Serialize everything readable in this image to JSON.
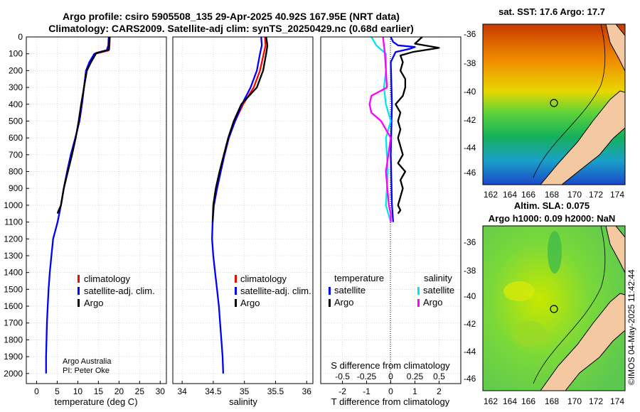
{
  "titles": {
    "line1": "Argo profile: csiro 5905508_135 29-Apr-2025 40.92S 167.95E (NRT data)",
    "line2": "Climatology: CARS2009. Satellite-adj clim: synTS_20250429.nc (0.68d earlier)"
  },
  "maps": {
    "sst_title": "sat. SST: 17.6 Argo: 17.7",
    "sla_title1": "Altim. SLA: 0.075",
    "sla_title2": "Argo h1000: 0.09 h2000: NaN",
    "lat_ticks": [
      "-36",
      "-38",
      "-40",
      "-42",
      "-44",
      "-46"
    ],
    "lon_ticks": [
      "162",
      "164",
      "166",
      "168",
      "170",
      "172",
      "174"
    ],
    "stamp": "©IMOS 04-May-2025 11:42:44"
  },
  "colors": {
    "climatology": "#ff0000",
    "satellite_adj": "#0000ff",
    "argo": "#000000",
    "sat_temp_diff": "#0000ff",
    "sat_sal_diff": "#00e5ee",
    "argo_sal_diff": "#ff00ff",
    "land": "#f4c8a0"
  },
  "legends": {
    "temp": [
      "climatology",
      "satellite-adj. clim.",
      "Argo"
    ],
    "sal": [
      "climatology",
      "satellite-adj. clim.",
      "Argo"
    ],
    "diff_temp_header": "temperature",
    "diff_sal_header": "salinity",
    "diff_temp_items": [
      "satellite",
      "Argo"
    ],
    "diff_sal_items": [
      "satellite",
      "Argo"
    ]
  },
  "credits": {
    "line1": "Argo Australia",
    "line2": "PI: Peter Oke"
  },
  "chart_data": [
    {
      "type": "line",
      "title": "",
      "xlabel": "temperature (deg C)",
      "ylabel": "",
      "xlim": [
        -2.5,
        31.5
      ],
      "ylim": [
        0,
        2060
      ],
      "x_ticks": [
        0,
        5,
        10,
        15,
        20,
        25,
        30
      ],
      "y_ticks": [
        0,
        100,
        200,
        300,
        400,
        500,
        600,
        700,
        800,
        900,
        1000,
        1100,
        1200,
        1300,
        1400,
        1500,
        1600,
        1700,
        1800,
        1900,
        2000
      ],
      "series": [
        {
          "name": "climatology",
          "x": [
            17.8,
            17.7,
            17.5,
            14.2,
            12.8,
            12.0,
            11.5,
            11.0,
            10.4,
            9.4,
            8.3,
            7.4,
            6.6,
            5.9,
            5.2
          ],
          "y": [
            0,
            50,
            80,
            100,
            150,
            200,
            300,
            400,
            500,
            600,
            700,
            800,
            900,
            1000,
            1040
          ]
        },
        {
          "name": "satellite-adj. clim.",
          "x": [
            17.5,
            17.4,
            17.0,
            14.0,
            12.8,
            12.0,
            11.5,
            11.0,
            10.4,
            9.4,
            8.3,
            7.4,
            6.6,
            5.9,
            5.1,
            4.0,
            3.6,
            3.2,
            2.9,
            2.7,
            2.5,
            2.4,
            2.3,
            2.3
          ],
          "y": [
            0,
            50,
            80,
            100,
            150,
            200,
            300,
            400,
            500,
            600,
            700,
            800,
            900,
            1000,
            1100,
            1200,
            1300,
            1400,
            1500,
            1600,
            1700,
            1800,
            1900,
            2000
          ]
        },
        {
          "name": "Argo",
          "x": [
            17.7,
            17.6,
            17.6,
            14.5,
            13.2,
            12.2,
            11.5,
            10.8,
            10.2,
            9.5,
            8.6,
            7.6,
            6.6,
            5.9,
            5.2,
            5.1
          ],
          "y": [
            0,
            40,
            75,
            95,
            150,
            200,
            300,
            400,
            500,
            600,
            700,
            800,
            900,
            1000,
            1040,
            1050
          ]
        }
      ]
    },
    {
      "type": "line",
      "title": "",
      "xlabel": "salinity",
      "ylabel": "",
      "xlim": [
        33.85,
        36.1
      ],
      "ylim": [
        0,
        2060
      ],
      "x_ticks": [
        34,
        34.5,
        35,
        35.5,
        36
      ],
      "x_tick_labels": [
        "34",
        "34.5",
        "35",
        "35.5",
        "36"
      ],
      "series": [
        {
          "name": "climatology",
          "x": [
            35.33,
            35.34,
            35.31,
            35.25,
            35.15,
            34.98,
            34.85,
            34.75,
            34.68,
            34.62,
            34.56,
            34.51
          ],
          "y": [
            0,
            50,
            100,
            200,
            300,
            400,
            500,
            600,
            700,
            800,
            900,
            1000
          ]
        },
        {
          "name": "satellite-adj. clim.",
          "x": [
            35.27,
            35.28,
            35.25,
            35.2,
            35.1,
            34.96,
            34.85,
            34.75,
            34.68,
            34.62,
            34.56,
            34.51,
            34.49,
            34.48,
            34.5,
            34.53,
            34.56,
            34.59,
            34.61,
            34.63,
            34.65,
            34.66
          ],
          "y": [
            0,
            50,
            100,
            200,
            300,
            400,
            500,
            600,
            700,
            800,
            900,
            1000,
            1100,
            1200,
            1300,
            1400,
            1500,
            1600,
            1700,
            1800,
            1900,
            2000
          ]
        },
        {
          "name": "Argo",
          "x": [
            35.35,
            35.37,
            35.35,
            35.3,
            35.2,
            34.95,
            34.83,
            34.74,
            34.67,
            34.6,
            34.54,
            34.5,
            34.49
          ],
          "y": [
            0,
            50,
            100,
            200,
            300,
            400,
            500,
            600,
            700,
            800,
            900,
            1000,
            1100
          ]
        }
      ]
    },
    {
      "type": "line",
      "title": "",
      "xlabel": "T difference from climatology",
      "ylabel": "",
      "xlabel_top": "S difference from climatology",
      "xlim": [
        -2.9,
        2.9
      ],
      "ylim": [
        0,
        2060
      ],
      "x_ticks": [
        -2,
        -1,
        0,
        1,
        2
      ],
      "x_tick_labels": [
        "-2",
        "-1",
        "0",
        "1",
        "2"
      ],
      "s_ticks": [
        -0.5,
        -0.25,
        0,
        0.25,
        0.5
      ],
      "s_tick_labels": [
        "-0.5",
        "-0.25",
        "0",
        "0.25",
        "0.5"
      ],
      "series": [
        {
          "name": "satellite temperature",
          "x": [
            0.0,
            0.1,
            0.3,
            1.0,
            0.8,
            0.2,
            0.0,
            0.05,
            0.0,
            0.05,
            0.1
          ],
          "y": [
            0,
            30,
            50,
            60,
            70,
            90,
            150,
            400,
            700,
            1000,
            1100
          ]
        },
        {
          "name": "Argo temperature",
          "x": [
            1.3,
            1.0,
            2.0,
            0.9,
            0.4,
            0.5,
            0.4,
            0.6,
            0.6,
            0.5,
            0.2,
            0.4,
            0.3,
            0.4,
            0.3,
            0.4,
            0.5,
            0.3,
            0.6,
            0.4,
            0.5,
            0.4,
            0.3,
            0.4,
            0.3
          ],
          "y": [
            0,
            40,
            65,
            90,
            110,
            150,
            200,
            250,
            300,
            350,
            400,
            450,
            500,
            550,
            600,
            650,
            700,
            750,
            800,
            850,
            900,
            950,
            1000,
            1030,
            1050
          ]
        },
        {
          "name": "satellite salinity",
          "x": [
            -0.2,
            -0.15,
            -0.05,
            -0.05,
            -0.07,
            -0.05,
            0.0,
            -0.05,
            -0.03,
            -0.05,
            0.0
          ],
          "y": [
            0,
            50,
            100,
            200,
            300,
            400,
            500,
            600,
            800,
            1000,
            1100
          ]
        },
        {
          "name": "Argo salinity",
          "x": [
            -0.08,
            -0.06,
            -0.05,
            -0.04,
            -0.2,
            -0.22,
            -0.2,
            -0.1,
            0.0,
            -0.05,
            -0.02,
            0.0,
            0.0
          ],
          "y": [
            0,
            100,
            200,
            300,
            350,
            400,
            450,
            500,
            600,
            800,
            1000,
            1050,
            1100
          ]
        }
      ]
    }
  ]
}
